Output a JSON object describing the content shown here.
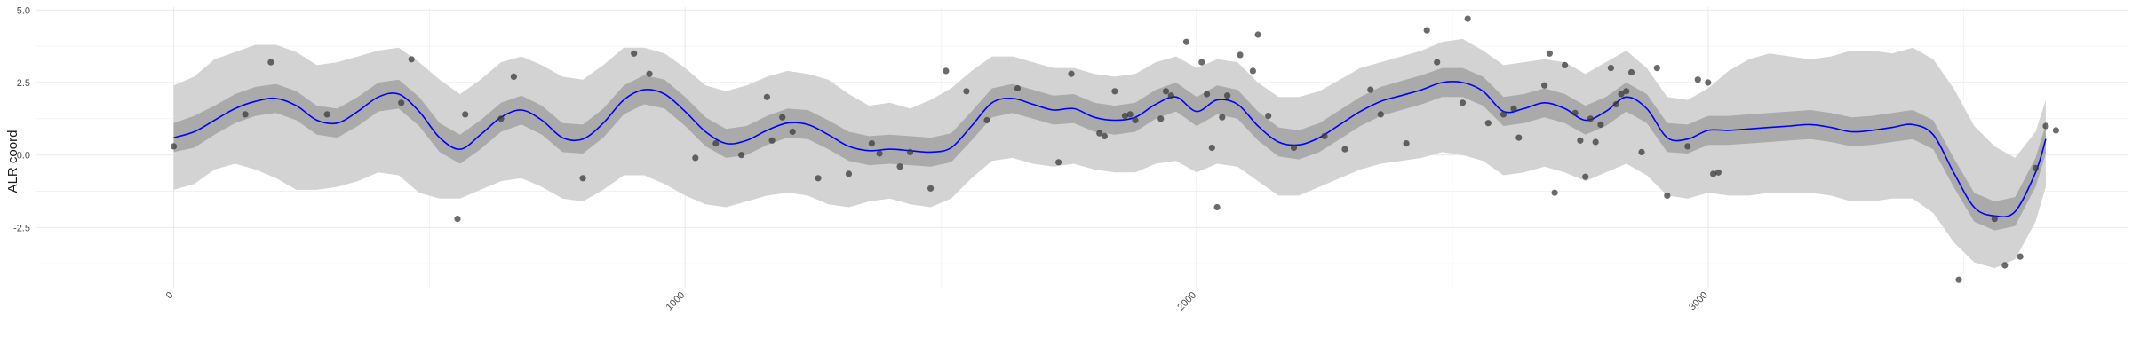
{
  "chart_data": {
    "type": "line",
    "title": "",
    "xlabel": "",
    "ylabel": "ALR coord",
    "xlim": [
      -270,
      3820
    ],
    "ylim": [
      -4.6,
      5.1
    ],
    "grid": true,
    "x_ticks": [
      0,
      1000,
      2000,
      3000
    ],
    "x_tick_labels": [
      "0",
      "1000",
      "2000",
      "3000"
    ],
    "y_ticks": [
      -2.5,
      0.0,
      2.5,
      5.0
    ],
    "y_tick_labels": [
      "-2.5",
      "0.0",
      "2.5",
      "5.0"
    ],
    "colors": {
      "line": "#0000ff",
      "band_inner": "#aaaaaa",
      "band_outer": "#d3d3d3",
      "points": "#3a3a3a",
      "grid": "#ebebeb"
    },
    "series": [
      {
        "kind": "smooth_line",
        "x": [
          0,
          40,
          80,
          120,
          160,
          200,
          240,
          280,
          320,
          360,
          400,
          440,
          480,
          520,
          560,
          600,
          640,
          680,
          720,
          760,
          800,
          840,
          880,
          920,
          960,
          1000,
          1040,
          1080,
          1120,
          1160,
          1200,
          1240,
          1280,
          1320,
          1360,
          1400,
          1440,
          1480,
          1520,
          1560,
          1600,
          1640,
          1680,
          1720,
          1760,
          1800,
          1840,
          1880,
          1920,
          1960,
          2000,
          2040,
          2080,
          2120,
          2160,
          2200,
          2240,
          2280,
          2320,
          2360,
          2400,
          2440,
          2480,
          2520,
          2560,
          2600,
          2640,
          2680,
          2720,
          2760,
          2800,
          2840,
          2880,
          2920,
          2960,
          3000,
          3040,
          3080,
          3120,
          3160,
          3200,
          3240,
          3280,
          3320,
          3360,
          3400,
          3440,
          3480,
          3520,
          3560,
          3600,
          3640,
          3660
        ],
        "y": [
          0.6,
          0.8,
          1.2,
          1.6,
          1.85,
          1.95,
          1.7,
          1.2,
          1.1,
          1.5,
          2.0,
          2.1,
          1.5,
          0.6,
          0.2,
          0.7,
          1.3,
          1.55,
          1.2,
          0.6,
          0.55,
          1.1,
          1.9,
          2.25,
          2.1,
          1.5,
          0.8,
          0.4,
          0.5,
          0.85,
          1.1,
          1.05,
          0.7,
          0.3,
          0.15,
          0.2,
          0.15,
          0.1,
          0.25,
          1.0,
          1.8,
          1.95,
          1.75,
          1.55,
          1.6,
          1.3,
          1.2,
          1.3,
          1.75,
          2.0,
          1.5,
          1.9,
          1.75,
          1.0,
          0.45,
          0.35,
          0.6,
          1.05,
          1.5,
          1.85,
          2.05,
          2.25,
          2.5,
          2.5,
          2.2,
          1.5,
          1.6,
          1.8,
          1.6,
          1.2,
          1.5,
          2.0,
          1.6,
          0.6,
          0.55,
          0.85,
          0.85,
          0.9,
          0.95,
          1.0,
          1.05,
          0.95,
          0.8,
          0.85,
          0.95,
          1.05,
          0.7,
          -0.6,
          -1.8,
          -2.1,
          -1.95,
          -0.6,
          0.55
        ],
        "band_inner_low": [
          0.1,
          0.25,
          0.7,
          1.1,
          1.35,
          1.45,
          1.2,
          0.7,
          0.6,
          1.0,
          1.5,
          1.6,
          1.0,
          0.1,
          -0.3,
          0.2,
          0.8,
          1.05,
          0.7,
          0.1,
          0.05,
          0.6,
          1.4,
          1.75,
          1.6,
          1.0,
          0.3,
          -0.1,
          0.0,
          0.35,
          0.6,
          0.55,
          0.2,
          -0.2,
          -0.35,
          -0.3,
          -0.35,
          -0.4,
          -0.25,
          0.5,
          1.3,
          1.45,
          1.25,
          1.05,
          1.1,
          0.8,
          0.7,
          0.8,
          1.25,
          1.5,
          1.0,
          1.4,
          1.25,
          0.5,
          -0.05,
          -0.15,
          0.1,
          0.55,
          1.0,
          1.35,
          1.55,
          1.75,
          2.0,
          2.0,
          1.7,
          1.0,
          1.1,
          1.3,
          1.1,
          0.7,
          1.0,
          1.5,
          1.1,
          0.1,
          0.05,
          0.35,
          0.35,
          0.4,
          0.45,
          0.5,
          0.55,
          0.45,
          0.3,
          0.35,
          0.45,
          0.55,
          0.2,
          -1.1,
          -2.3,
          -2.6,
          -2.45,
          -1.1,
          0.05
        ],
        "band_inner_high": [
          1.1,
          1.35,
          1.7,
          2.1,
          2.35,
          2.45,
          2.2,
          1.7,
          1.6,
          2.0,
          2.5,
          2.6,
          2.0,
          1.1,
          0.7,
          1.2,
          1.8,
          2.05,
          1.7,
          1.1,
          1.05,
          1.6,
          2.4,
          2.75,
          2.6,
          2.0,
          1.3,
          0.9,
          1.0,
          1.35,
          1.6,
          1.55,
          1.2,
          0.8,
          0.65,
          0.7,
          0.65,
          0.6,
          0.75,
          1.5,
          2.3,
          2.45,
          2.25,
          2.05,
          2.1,
          1.8,
          1.7,
          1.8,
          2.25,
          2.5,
          2.0,
          2.4,
          2.25,
          1.5,
          0.95,
          0.85,
          1.1,
          1.55,
          2.0,
          2.35,
          2.55,
          2.75,
          3.0,
          3.0,
          2.7,
          2.0,
          2.1,
          2.3,
          2.1,
          1.7,
          2.0,
          2.5,
          2.1,
          1.1,
          1.05,
          1.35,
          1.35,
          1.4,
          1.45,
          1.5,
          1.55,
          1.45,
          1.3,
          1.35,
          1.45,
          1.55,
          1.2,
          -0.1,
          -1.3,
          -1.6,
          -1.45,
          -0.1,
          1.05
        ],
        "band_outer_low": [
          -1.2,
          -1.0,
          -0.5,
          -0.3,
          -0.5,
          -0.8,
          -1.2,
          -1.2,
          -1.1,
          -0.9,
          -0.6,
          -0.7,
          -1.3,
          -1.5,
          -1.5,
          -1.2,
          -0.9,
          -0.8,
          -1.1,
          -1.5,
          -1.6,
          -1.2,
          -0.7,
          -0.7,
          -1.0,
          -1.4,
          -1.7,
          -1.8,
          -1.6,
          -1.4,
          -1.3,
          -1.4,
          -1.7,
          -1.8,
          -1.6,
          -1.5,
          -1.7,
          -1.8,
          -1.5,
          -0.8,
          -0.2,
          -0.1,
          -0.3,
          -0.4,
          -0.3,
          -0.5,
          -0.6,
          -0.6,
          -0.3,
          -0.2,
          -0.6,
          -0.3,
          -0.4,
          -0.9,
          -1.4,
          -1.4,
          -1.1,
          -0.8,
          -0.5,
          -0.3,
          -0.2,
          -0.1,
          0.1,
          0.0,
          -0.2,
          -0.7,
          -0.6,
          -0.4,
          -0.6,
          -0.9,
          -0.6,
          -0.3,
          -0.7,
          -1.4,
          -1.5,
          -1.3,
          -1.4,
          -1.4,
          -1.3,
          -1.3,
          -1.3,
          -1.4,
          -1.6,
          -1.6,
          -1.5,
          -1.5,
          -2.0,
          -3.0,
          -3.7,
          -3.9,
          -3.6,
          -2.3,
          -1.1
        ],
        "band_outer_high": [
          2.4,
          2.7,
          3.3,
          3.55,
          3.8,
          3.8,
          3.55,
          3.1,
          3.2,
          3.4,
          3.6,
          3.7,
          3.2,
          2.6,
          2.1,
          2.6,
          3.2,
          3.4,
          3.1,
          2.7,
          2.6,
          3.1,
          3.7,
          3.7,
          3.5,
          3.0,
          2.4,
          2.2,
          2.4,
          2.7,
          2.9,
          2.8,
          2.6,
          2.1,
          1.7,
          1.8,
          1.6,
          1.9,
          2.3,
          2.9,
          3.4,
          3.4,
          3.2,
          3.0,
          3.0,
          2.8,
          2.7,
          2.8,
          3.2,
          3.4,
          3.0,
          3.3,
          3.2,
          2.5,
          2.0,
          2.0,
          2.2,
          2.6,
          3.0,
          3.2,
          3.4,
          3.6,
          3.9,
          4.0,
          3.6,
          3.1,
          3.2,
          3.3,
          3.2,
          2.8,
          3.2,
          3.6,
          3.0,
          2.0,
          1.9,
          2.3,
          2.9,
          3.3,
          3.5,
          3.4,
          3.3,
          3.4,
          3.6,
          3.6,
          3.5,
          3.7,
          3.3,
          2.3,
          1.0,
          0.3,
          -0.1,
          0.8,
          1.9
        ]
      },
      {
        "kind": "points",
        "x": [
          0,
          140,
          190,
          300,
          445,
          465,
          555,
          570,
          640,
          665,
          800,
          900,
          930,
          1020,
          1060,
          1110,
          1160,
          1170,
          1190,
          1210,
          1260,
          1320,
          1365,
          1380,
          1420,
          1440,
          1480,
          1510,
          1550,
          1590,
          1650,
          1730,
          1755,
          1810,
          1820,
          1840,
          1860,
          1870,
          1880,
          1930,
          1940,
          1950,
          1980,
          2010,
          2020,
          2030,
          2040,
          2050,
          2060,
          2085,
          2110,
          2120,
          2140,
          2190,
          2250,
          2290,
          2340,
          2360,
          2410,
          2450,
          2470,
          2520,
          2530,
          2570,
          2600,
          2620,
          2630,
          2680,
          2690,
          2700,
          2720,
          2740,
          2750,
          2760,
          2770,
          2780,
          2790,
          2810,
          2820,
          2830,
          2840,
          2850,
          2870,
          2900,
          2920,
          2960,
          2980,
          3000,
          3010,
          3020,
          3490,
          3560,
          3580,
          3610,
          3640,
          3660,
          3680
        ],
        "y": [
          0.3,
          1.4,
          3.2,
          1.4,
          1.8,
          3.3,
          -2.2,
          1.4,
          1.25,
          2.7,
          -0.8,
          3.5,
          2.8,
          -0.1,
          0.4,
          0.0,
          2.0,
          0.5,
          1.3,
          0.8,
          -0.8,
          -0.65,
          0.4,
          0.05,
          -0.4,
          0.1,
          -1.15,
          2.9,
          2.2,
          1.2,
          2.3,
          -0.25,
          2.8,
          0.75,
          0.65,
          2.2,
          1.35,
          1.4,
          1.2,
          1.25,
          2.2,
          2.05,
          3.9,
          3.2,
          2.1,
          0.25,
          -1.8,
          1.3,
          2.05,
          3.45,
          2.9,
          4.15,
          1.35,
          0.25,
          0.65,
          0.2,
          2.25,
          1.4,
          0.4,
          4.3,
          3.2,
          1.8,
          4.7,
          1.1,
          1.4,
          1.6,
          0.6,
          2.4,
          3.5,
          -1.3,
          3.1,
          1.45,
          0.5,
          -0.75,
          1.25,
          0.45,
          1.05,
          3.0,
          1.75,
          2.1,
          2.2,
          2.85,
          0.1,
          3.0,
          -1.4,
          0.3,
          2.6,
          2.5,
          -0.65,
          -0.6,
          -4.3,
          -2.2,
          -3.8,
          -3.5,
          -0.45,
          1.0,
          0.85
        ]
      }
    ]
  }
}
